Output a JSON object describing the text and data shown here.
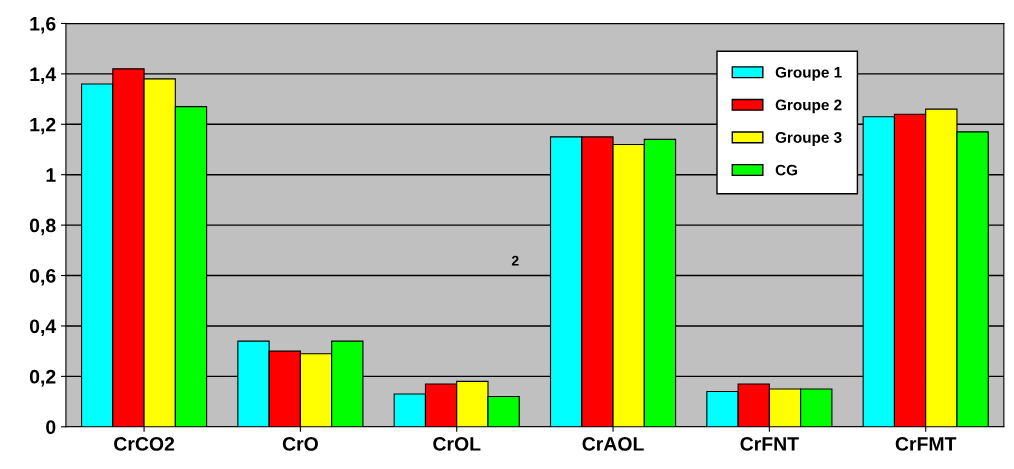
{
  "chart_data": {
    "type": "bar",
    "categories": [
      "CrCO2",
      "CrO",
      "CrOL",
      "CrAOL",
      "CrFNT",
      "CrFMT"
    ],
    "series": [
      {
        "name": "Groupe 1",
        "color": "#00ffff",
        "values": [
          1.36,
          0.34,
          0.13,
          1.15,
          0.14,
          1.23
        ]
      },
      {
        "name": "Groupe 2",
        "color": "#ff0000",
        "values": [
          1.42,
          0.3,
          0.17,
          1.15,
          0.17,
          1.24
        ]
      },
      {
        "name": "Groupe 3",
        "color": "#ffff00",
        "values": [
          1.38,
          0.29,
          0.18,
          1.12,
          0.15,
          1.26
        ]
      },
      {
        "name": "CG",
        "color": "#00ff00",
        "values": [
          1.27,
          0.34,
          0.12,
          1.14,
          0.15,
          1.17
        ]
      }
    ],
    "ylim": [
      0,
      1.6
    ],
    "yticks": [
      {
        "value": 0,
        "label": "0"
      },
      {
        "value": 0.2,
        "label": "0,2"
      },
      {
        "value": 0.4,
        "label": "0,4"
      },
      {
        "value": 0.6,
        "label": "0,6"
      },
      {
        "value": 0.8,
        "label": "0,8"
      },
      {
        "value": 1,
        "label": "1"
      },
      {
        "value": 1.2,
        "label": "1,2"
      },
      {
        "value": 1.4,
        "label": "1,4"
      },
      {
        "value": 1.6,
        "label": "1,6"
      }
    ],
    "grid": "y",
    "legend": "top right",
    "annotations": [
      "2"
    ]
  }
}
